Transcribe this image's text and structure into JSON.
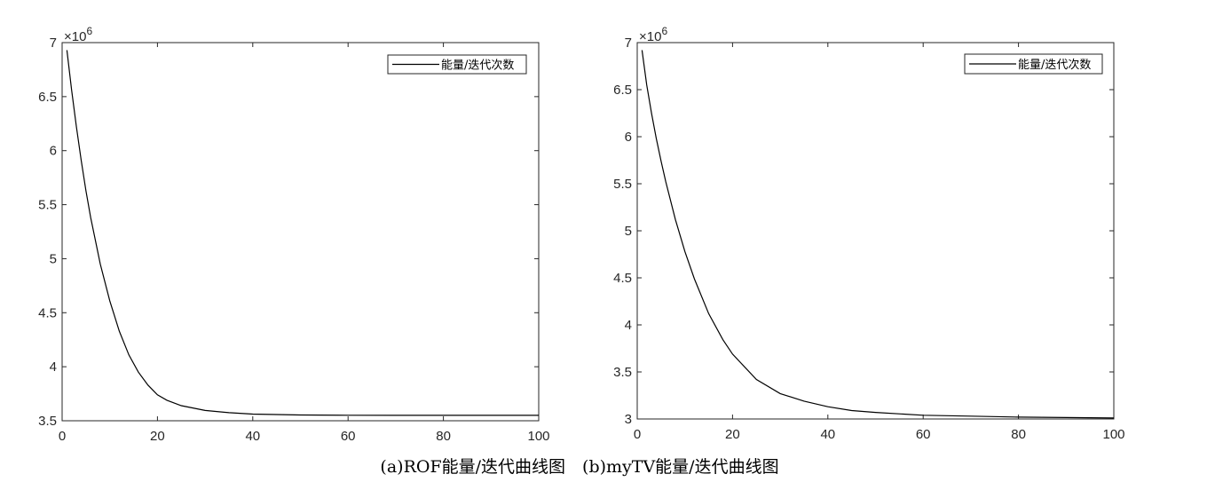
{
  "caption": "(a)ROF能量/迭代曲线图　(b)myTV能量/迭代曲线图",
  "chart_data": [
    {
      "type": "line",
      "title": "",
      "xlabel": "",
      "ylabel": "",
      "xlim": [
        0,
        100
      ],
      "ylim": [
        3.5,
        7
      ],
      "y_multiplier": "×10^6",
      "y_multiplier_base": "×10",
      "y_multiplier_exp": "6",
      "xticks": [
        0,
        20,
        40,
        60,
        80,
        100
      ],
      "yticks": [
        3.5,
        4,
        4.5,
        5,
        5.5,
        6,
        6.5,
        7
      ],
      "xtick_labels": [
        "0",
        "20",
        "40",
        "60",
        "80",
        "100"
      ],
      "ytick_labels": [
        "3.5",
        "4",
        "4.5",
        "5",
        "5.5",
        "6",
        "6.5",
        "7"
      ],
      "legend": "top-right",
      "grid": false,
      "series": [
        {
          "name": "能量/迭代次数",
          "x": [
            1,
            2,
            3,
            4,
            5,
            6,
            8,
            10,
            12,
            14,
            16,
            18,
            20,
            22,
            25,
            30,
            35,
            40,
            50,
            60,
            70,
            80,
            90,
            100
          ],
          "values": [
            6.93,
            6.56,
            6.22,
            5.91,
            5.63,
            5.38,
            4.95,
            4.61,
            4.33,
            4.11,
            3.95,
            3.83,
            3.74,
            3.69,
            3.64,
            3.595,
            3.575,
            3.562,
            3.553,
            3.551,
            3.55,
            3.55,
            3.55,
            3.55
          ]
        }
      ]
    },
    {
      "type": "line",
      "title": "",
      "xlabel": "",
      "ylabel": "",
      "xlim": [
        0,
        100
      ],
      "ylim": [
        3,
        7
      ],
      "y_multiplier": "×10^6",
      "y_multiplier_base": "×10",
      "y_multiplier_exp": "6",
      "xticks": [
        0,
        20,
        40,
        60,
        80,
        100
      ],
      "yticks": [
        3,
        3.5,
        4,
        4.5,
        5,
        5.5,
        6,
        6.5,
        7
      ],
      "xtick_labels": [
        "0",
        "20",
        "40",
        "60",
        "80",
        "100"
      ],
      "ytick_labels": [
        "3",
        "3.5",
        "4",
        "4.5",
        "5",
        "5.5",
        "6",
        "6.5",
        "7"
      ],
      "legend": "top-right",
      "grid": false,
      "series": [
        {
          "name": "能量/迭代次数",
          "x": [
            1,
            2,
            3,
            4,
            5,
            6,
            8,
            10,
            12,
            15,
            18,
            20,
            25,
            30,
            35,
            40,
            45,
            50,
            60,
            70,
            80,
            90,
            100
          ],
          "values": [
            6.92,
            6.55,
            6.25,
            5.98,
            5.74,
            5.52,
            5.12,
            4.78,
            4.49,
            4.12,
            3.84,
            3.69,
            3.42,
            3.27,
            3.19,
            3.13,
            3.09,
            3.07,
            3.04,
            3.03,
            3.02,
            3.015,
            3.01
          ]
        }
      ]
    }
  ]
}
